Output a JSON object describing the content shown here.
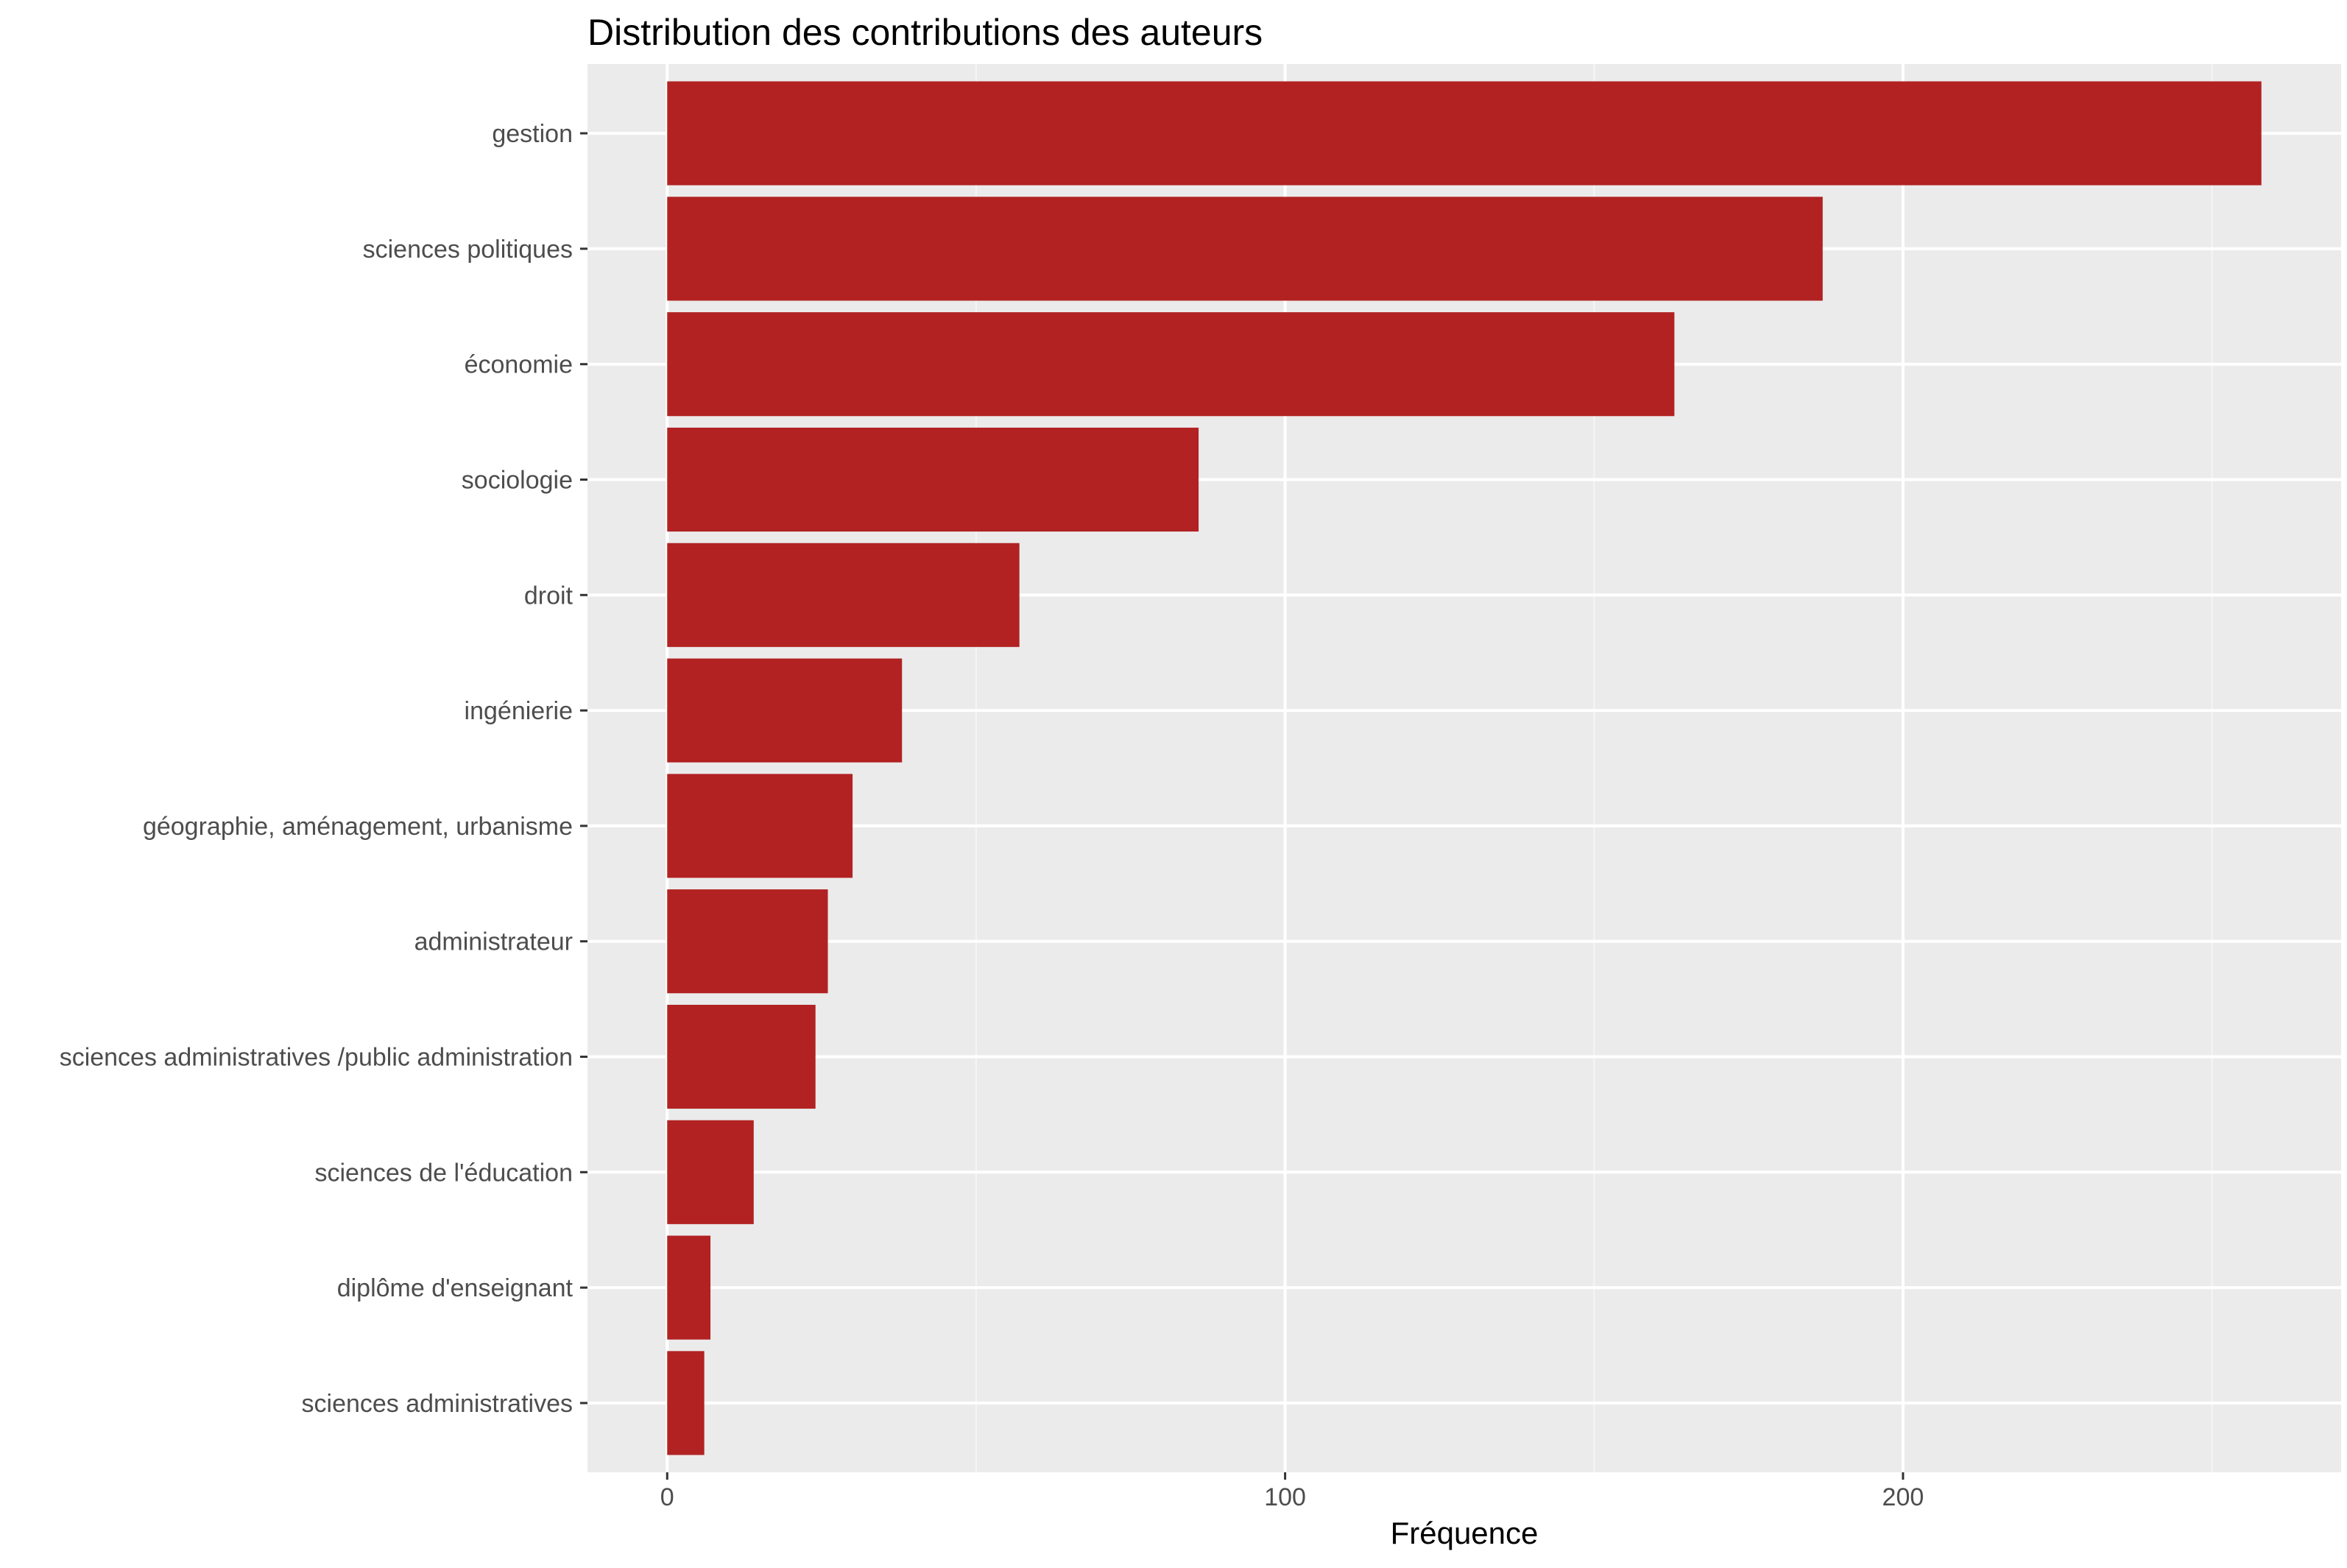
{
  "chart_data": {
    "type": "bar",
    "orientation": "horizontal",
    "title": "Distribution des contributions des auteurs",
    "xlabel": "Fréquence",
    "ylabel": "",
    "categories": [
      "gestion",
      "sciences politiques",
      "économie",
      "sociologie",
      "droit",
      "ingénierie",
      "géographie, aménagement, urbanisme",
      "administrateur",
      "sciences administratives /public administration",
      "sciences de l'éducation",
      "diplôme d'enseignant",
      "sciences administratives"
    ],
    "values": [
      258,
      187,
      163,
      86,
      57,
      38,
      30,
      26,
      24,
      14,
      7,
      6
    ],
    "xlim": [
      -12.9,
      270.9
    ],
    "xticks": [
      0,
      100,
      200
    ],
    "grid": true,
    "legend": "none",
    "colors": {
      "bar": "#b22222",
      "panel_background": "#ebebeb",
      "grid_major": "#ffffff",
      "grid_minor": "#f5f5f5",
      "axis_text": "#4d4d4d",
      "title_text": "#000000"
    }
  }
}
